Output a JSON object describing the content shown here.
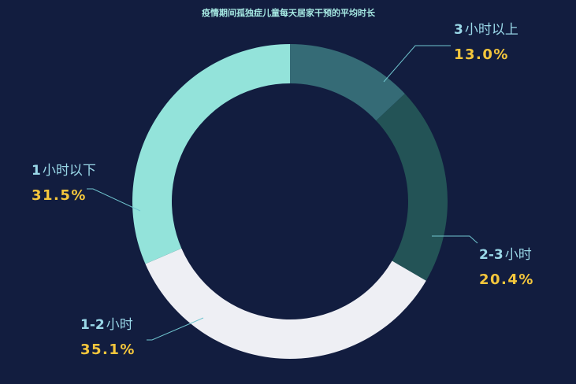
{
  "chart_data": {
    "type": "pie",
    "title": "疫情期间孤独症儿童每天居家干预的平均时长",
    "categories": [
      "3小时以上",
      "2-3小时",
      "1-2小时",
      "1小时以下"
    ],
    "values": [
      13.0,
      20.4,
      35.1,
      31.5
    ],
    "value_labels": [
      "13.0%",
      "20.4%",
      "35.1%",
      "31.5%"
    ],
    "label_parts": [
      [
        "3",
        "小时以上"
      ],
      [
        "2-3",
        "小时"
      ],
      [
        "1-2",
        "小时"
      ],
      [
        "1",
        "小时以下"
      ]
    ],
    "colors": [
      "#356b76",
      "#235356",
      "#eeeff4",
      "#93e3da"
    ],
    "inner_radius_ratio": 0.75,
    "start_angle": "top",
    "direction": "clockwise",
    "legend": "none"
  },
  "theme": {
    "background": "#121d3f",
    "title_color": "#a6e9e3",
    "label_color": "#9ad8e8",
    "value_color": "#f4c63c",
    "leader_color": "#70c5cf"
  }
}
